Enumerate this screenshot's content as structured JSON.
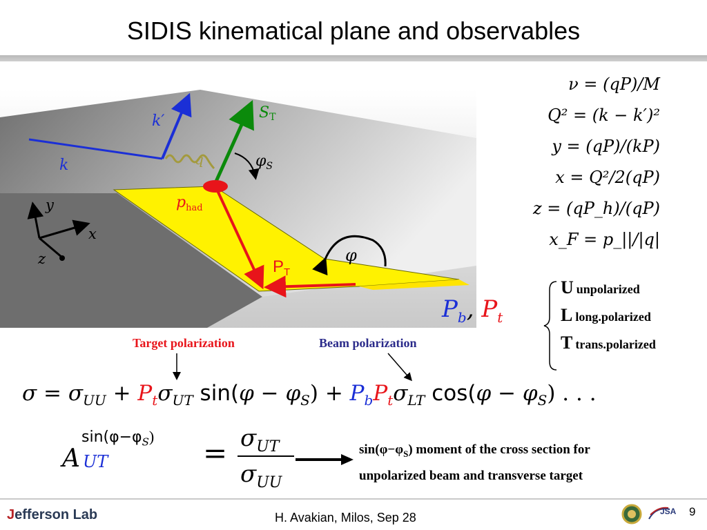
{
  "title": "SIDIS kinematical plane and observables",
  "diagram": {
    "k_label": "k",
    "kprime_label": "k′",
    "q_label": "q",
    "S_label": "S",
    "S_sub": "T",
    "phiS_label": "φ",
    "phiS_sub": "S",
    "phad_label": "p",
    "phad_sub": "had",
    "PT_label": "P",
    "PT_sub": "T",
    "phi_label": "φ",
    "axis_x": "x",
    "axis_y": "y",
    "axis_z": "z",
    "colors": {
      "plane": "#9a9a9a",
      "hadron_plane": "#fff200",
      "k_vectors": "#1b2fd6",
      "spin": "#0b8a0b",
      "hadron": "#e8141a"
    }
  },
  "equations": [
    "ν = (qP)/M",
    "Q² = (k − k′)²",
    "y = (qP)/(kP)",
    "x = Q²/2(qP)",
    "z = (qP_h)/(qP)",
    "x_F = p_||/|q|"
  ],
  "pol": {
    "b": "P",
    "b_sub": "b",
    "t": "P",
    "t_sub": "t"
  },
  "legend": [
    {
      "letter": "U",
      "text": "unpolarized"
    },
    {
      "letter": "L",
      "text": "long.polarized"
    },
    {
      "letter": "T",
      "text": "trans.polarized"
    }
  ],
  "target_polarization": "Target polarization",
  "beam_polarization": "Beam polarization",
  "cross_section": {
    "lhs": "σ = σ",
    "uu": "UU",
    "plus1": " + ",
    "pt": "P",
    "pt_sub": "t",
    "sig_ut": "σ",
    "ut": "UT",
    "sin": " sin(",
    "sin_arg": "φ − φ",
    "s_sub": "S",
    "close1": ") + ",
    "pb": "P",
    "pb_sub": "b",
    "pt2": "P",
    "pt2_sub": "t",
    "sig_lt": "σ",
    "lt": "LT",
    "cos": " cos(",
    "cos_arg": "φ − φ",
    "s_sub2": "S",
    "close2": ") . . ."
  },
  "asymmetry": {
    "A": "A",
    "sup": "sin(φ−φ",
    "sup_s": "S",
    "sup_close": ")",
    "sub": "UT",
    "eq": "=",
    "num": "σ",
    "num_sub": "UT",
    "den": "σ",
    "den_sub": "UU"
  },
  "note": {
    "line1_a": "sin(φ−φ",
    "line1_s": "S",
    "line1_b": ") moment of the cross section for",
    "line2": "unpolarized beam and transverse target"
  },
  "footer": {
    "logo_j": "J",
    "logo_rest": "efferson Lab",
    "text": "H. Avakian, Milos,  Sep 28",
    "page": "9",
    "jsa": "JSA"
  }
}
